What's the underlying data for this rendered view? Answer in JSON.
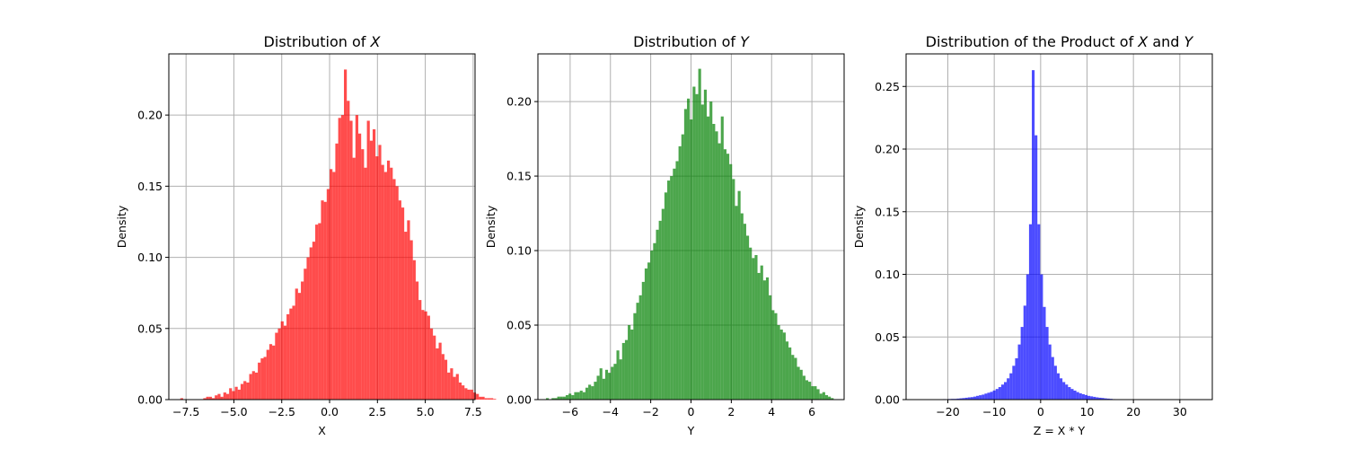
{
  "chart_data": [
    {
      "type": "bar",
      "subtype": "histogram",
      "title": "Distribution of X",
      "title_parts": [
        "Distribution of ",
        "X"
      ],
      "xlabel": "X",
      "ylabel": "Density",
      "color": "#ff0000",
      "opacity": 0.7,
      "grid": true,
      "xlim": [
        -8.4,
        7.6
      ],
      "ylim": [
        0,
        0.243
      ],
      "xticks": [
        -7.5,
        -5.0,
        -2.5,
        0.0,
        2.5,
        5.0,
        7.5
      ],
      "xtick_labels": [
        "−7.5",
        "−5.0",
        "−2.5",
        "0.0",
        "2.5",
        "5.0",
        "7.5"
      ],
      "yticks": [
        0.0,
        0.05,
        0.1,
        0.15,
        0.2
      ],
      "ytick_labels": [
        "0.00",
        "0.05",
        "0.10",
        "0.15",
        "0.20"
      ],
      "bin_start": -7.8,
      "bin_width": 0.15,
      "values": [
        0.001,
        0,
        0,
        0,
        0,
        0,
        0,
        0,
        0.001,
        0.002,
        0.002,
        0.001,
        0.003,
        0.004,
        0.002,
        0.005,
        0.004,
        0.008,
        0.006,
        0.009,
        0.007,
        0.011,
        0.013,
        0.012,
        0.018,
        0.02,
        0.019,
        0.026,
        0.029,
        0.03,
        0.035,
        0.039,
        0.038,
        0.047,
        0.05,
        0.055,
        0.052,
        0.06,
        0.064,
        0.066,
        0.078,
        0.075,
        0.083,
        0.092,
        0.1,
        0.107,
        0.111,
        0.123,
        0.124,
        0.14,
        0.139,
        0.148,
        0.162,
        0.16,
        0.18,
        0.198,
        0.2,
        0.232,
        0.21,
        0.196,
        0.17,
        0.2,
        0.187,
        0.176,
        0.163,
        0.196,
        0.182,
        0.19,
        0.171,
        0.179,
        0.165,
        0.16,
        0.168,
        0.163,
        0.155,
        0.15,
        0.14,
        0.135,
        0.118,
        0.126,
        0.112,
        0.098,
        0.083,
        0.07,
        0.063,
        0.062,
        0.059,
        0.05,
        0.045,
        0.036,
        0.04,
        0.032,
        0.028,
        0.019,
        0.022,
        0.016,
        0.018,
        0.012,
        0.01,
        0.008,
        0.007,
        0.007,
        0.005,
        0.004,
        0.002,
        0.002,
        0.001,
        0.001,
        0.001,
        0.0005
      ]
    },
    {
      "type": "bar",
      "subtype": "histogram",
      "title": "Distribution of Y",
      "title_parts": [
        "Distribution of ",
        "Y"
      ],
      "xlabel": "Y",
      "ylabel": "Density",
      "color": "#008000",
      "opacity": 0.7,
      "grid": true,
      "xlim": [
        -7.6,
        7.6
      ],
      "ylim": [
        0,
        0.232
      ],
      "xticks": [
        -6,
        -4,
        -2,
        0,
        2,
        4,
        6
      ],
      "xtick_labels": [
        "−6",
        "−4",
        "−2",
        "0",
        "2",
        "4",
        "6"
      ],
      "yticks": [
        0.0,
        0.05,
        0.1,
        0.15,
        0.2
      ],
      "ytick_labels": [
        "0.00",
        "0.05",
        "0.10",
        "0.15",
        "0.20"
      ],
      "bin_start": -7.2,
      "bin_width": 0.14,
      "values": [
        0.001,
        0,
        0.001,
        0.001,
        0.002,
        0.002,
        0.002,
        0.003,
        0.004,
        0.003,
        0.005,
        0.005,
        0.006,
        0.005,
        0.008,
        0.01,
        0.009,
        0.012,
        0.016,
        0.021,
        0.014,
        0.02,
        0.018,
        0.022,
        0.024,
        0.033,
        0.027,
        0.038,
        0.04,
        0.05,
        0.047,
        0.058,
        0.065,
        0.07,
        0.079,
        0.088,
        0.092,
        0.1,
        0.105,
        0.114,
        0.12,
        0.128,
        0.139,
        0.147,
        0.15,
        0.155,
        0.16,
        0.17,
        0.178,
        0.195,
        0.202,
        0.188,
        0.21,
        0.205,
        0.222,
        0.198,
        0.208,
        0.19,
        0.2,
        0.185,
        0.18,
        0.172,
        0.19,
        0.168,
        0.165,
        0.158,
        0.148,
        0.13,
        0.14,
        0.125,
        0.118,
        0.11,
        0.102,
        0.095,
        0.097,
        0.085,
        0.09,
        0.08,
        0.082,
        0.07,
        0.06,
        0.058,
        0.05,
        0.047,
        0.045,
        0.039,
        0.035,
        0.03,
        0.028,
        0.022,
        0.02,
        0.016,
        0.013,
        0.012,
        0.009,
        0.009,
        0.007,
        0.004,
        0.005,
        0.003,
        0.002,
        0.001
      ]
    },
    {
      "type": "bar",
      "subtype": "histogram",
      "title": "Distribution of the Product of X and Y",
      "title_parts": [
        "Distribution of the Product of ",
        "X",
        " and ",
        "Y"
      ],
      "xlabel": "Z = X * Y",
      "ylabel": "Density",
      "color": "#0000ff",
      "opacity": 0.7,
      "grid": true,
      "xlim": [
        -29,
        37
      ],
      "ylim": [
        0,
        0.276
      ],
      "xticks": [
        -20,
        -10,
        0,
        10,
        20,
        30
      ],
      "xtick_labels": [
        "−20",
        "−10",
        "0",
        "10",
        "20",
        "30"
      ],
      "yticks": [
        0.0,
        0.05,
        0.1,
        0.15,
        0.2,
        0.25
      ],
      "ytick_labels": [
        "0.00",
        "0.05",
        "0.10",
        "0.15",
        "0.20",
        "0.25"
      ],
      "bin_start": -26.5,
      "bin_width": 0.6,
      "values": [
        0.0002,
        0,
        0,
        0,
        0,
        0,
        0,
        0.0002,
        0.0003,
        0.0004,
        0.0003,
        0.0005,
        0.0006,
        0.0006,
        0.0008,
        0.001,
        0.0012,
        0.0015,
        0.0018,
        0.002,
        0.0024,
        0.003,
        0.0035,
        0.004,
        0.0048,
        0.0055,
        0.0062,
        0.0073,
        0.0085,
        0.01,
        0.012,
        0.014,
        0.017,
        0.021,
        0.027,
        0.033,
        0.044,
        0.058,
        0.075,
        0.1,
        0.14,
        0.263,
        0.211,
        0.14,
        0.1,
        0.074,
        0.058,
        0.044,
        0.034,
        0.027,
        0.021,
        0.017,
        0.014,
        0.012,
        0.01,
        0.0085,
        0.0072,
        0.006,
        0.005,
        0.0043,
        0.0037,
        0.003,
        0.0026,
        0.0022,
        0.0018,
        0.0015,
        0.0013,
        0.001,
        0.0008,
        0.0006,
        0.0004,
        0.0003,
        0.0002,
        0.0001
      ]
    }
  ]
}
